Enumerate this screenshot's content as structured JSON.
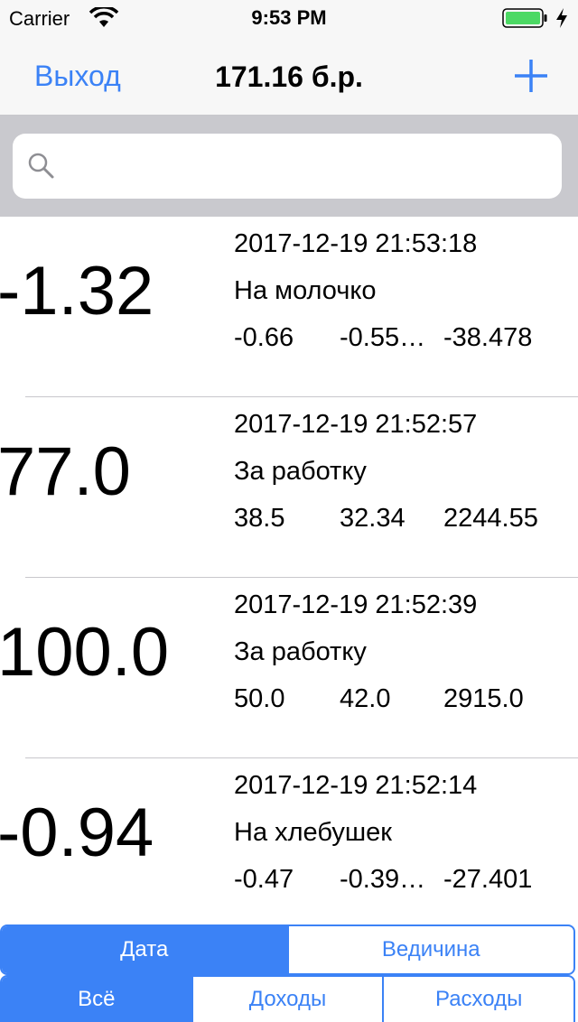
{
  "status_bar": {
    "carrier": "Carrier",
    "time": "9:53 PM"
  },
  "nav": {
    "left_label": "Выход",
    "title": "171.16 б.р.",
    "add_icon": "plus-icon"
  },
  "search": {
    "placeholder": "",
    "icon": "search-icon"
  },
  "transactions": [
    {
      "amount": "-1.32",
      "date": "2017-12-19 21:53:18",
      "description": "На молочко",
      "v1": "-0.66",
      "v2": "-0.55…",
      "v3": "-38.478"
    },
    {
      "amount": "77.0",
      "date": "2017-12-19 21:52:57",
      "description": "За работку",
      "v1": "38.5",
      "v2": "32.34",
      "v3": "2244.55"
    },
    {
      "amount": "100.0",
      "date": "2017-12-19 21:52:39",
      "description": "За работку",
      "v1": "50.0",
      "v2": "42.0",
      "v3": "2915.0"
    },
    {
      "amount": "-0.94",
      "date": "2017-12-19 21:52:14",
      "description": "На хлебушек",
      "v1": "-0.47",
      "v2": "-0.39…",
      "v3": "-27.401"
    }
  ],
  "sort_control": {
    "options": [
      "Дата",
      "Ведичина"
    ],
    "selected": "Дата"
  },
  "filter_control": {
    "options": [
      "Всё",
      "Доходы",
      "Расходы"
    ],
    "selected": "Всё"
  },
  "colors": {
    "accent": "#3b82f6",
    "separator": "#c8c7cc",
    "search_bg": "#c9c9ce",
    "battery": "#4cd964"
  }
}
